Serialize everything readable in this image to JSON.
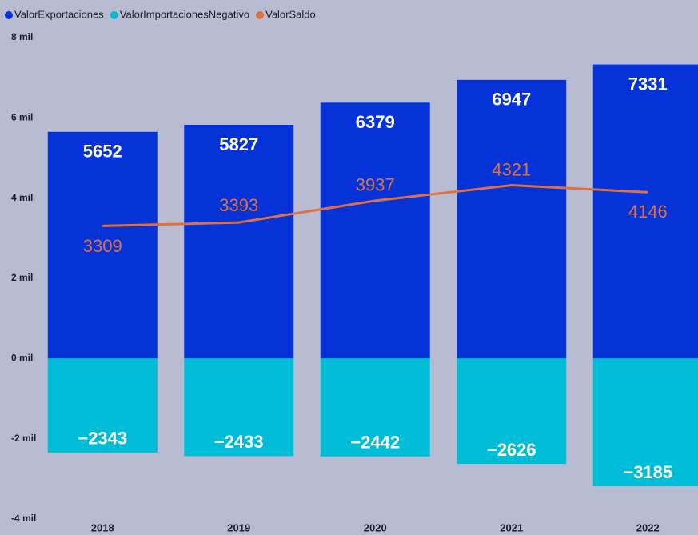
{
  "chart_data": {
    "type": "bar",
    "categories": [
      "2018",
      "2019",
      "2020",
      "2021",
      "2022"
    ],
    "series": [
      {
        "name": "ValorExportaciones",
        "color": "#0533d8",
        "values": [
          5652,
          5827,
          6379,
          6947,
          7331
        ]
      },
      {
        "name": "ValorImportacionesNegativo",
        "color": "#00bcd6",
        "values": [
          -2343,
          -2433,
          -2442,
          -2626,
          -3185
        ],
        "value_labels": [
          "−2343",
          "−2433",
          "−2442",
          "−2626",
          "−3185"
        ]
      },
      {
        "name": "ValorSaldo",
        "color": "#e0703c",
        "type": "line",
        "values": [
          3309,
          3393,
          3937,
          4321,
          4146
        ]
      }
    ],
    "ylim": [
      -4000,
      8000
    ],
    "yticks": [
      {
        "value": 8000,
        "label": "8 mil"
      },
      {
        "value": 6000,
        "label": "6 mil"
      },
      {
        "value": 4000,
        "label": "4 mil"
      },
      {
        "value": 2000,
        "label": "2 mil"
      },
      {
        "value": 0,
        "label": "0 mil"
      },
      {
        "value": -2000,
        "label": "-2 mil"
      },
      {
        "value": -4000,
        "label": "-4 mil"
      }
    ],
    "legend": "top-left",
    "grid": false
  }
}
